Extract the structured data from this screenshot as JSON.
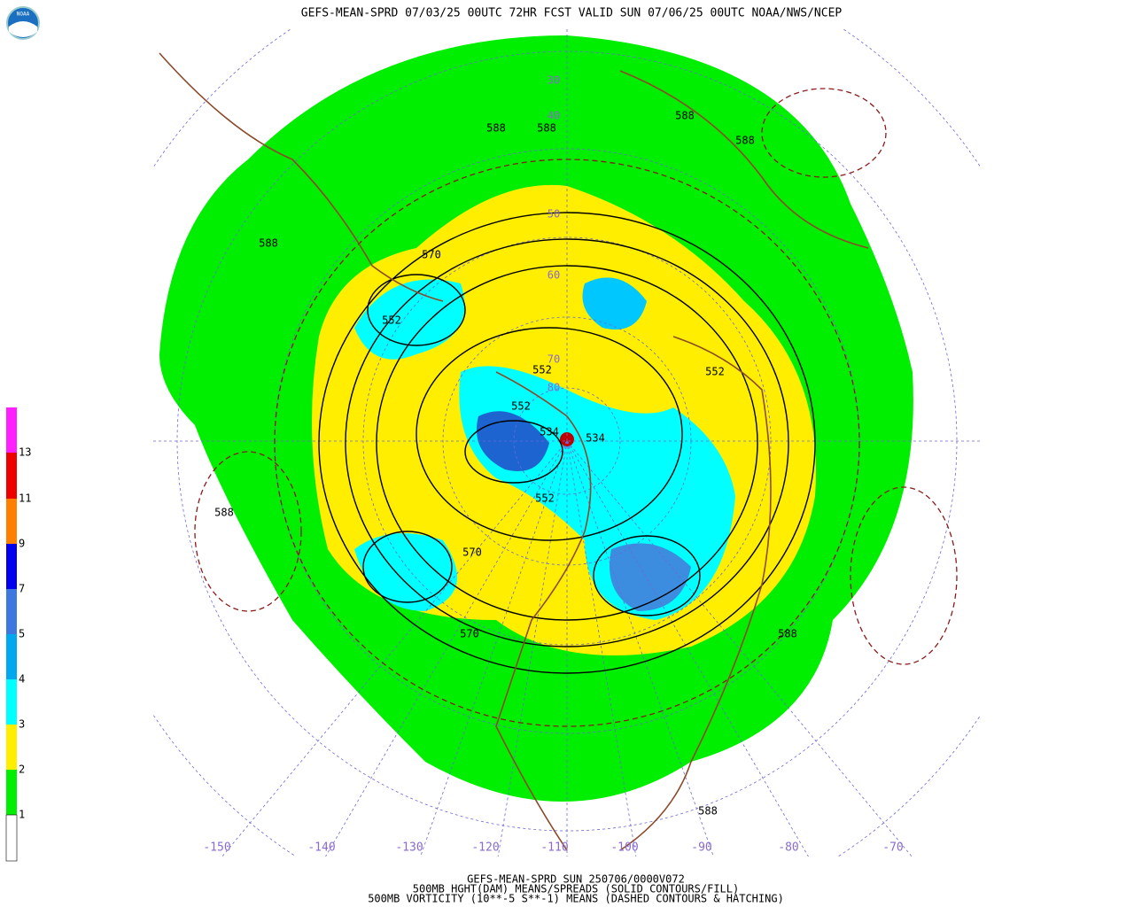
{
  "header": {
    "title": "GEFS-MEAN-SPRD 07/03/25 00UTC 72HR FCST VALID SUN 07/06/25 00UTC NOAA/NWS/NCEP",
    "logo": "NOAA"
  },
  "legend": {
    "labels": [
      "13",
      "11",
      "9",
      "7",
      "5",
      "4",
      "3",
      "2",
      "1"
    ]
  },
  "map": {
    "contour_labels": [
      "588",
      "588",
      "588",
      "588",
      "588",
      "588",
      "588",
      "588",
      "570",
      "570",
      "570",
      "552",
      "552",
      "552",
      "552",
      "552",
      "534",
      "534"
    ],
    "latitude_labels": [
      "30",
      "40",
      "50",
      "60",
      "70",
      "80"
    ],
    "longitude_labels": [
      "-150",
      "-140",
      "-130",
      "-120",
      "-110",
      "-100",
      "-90",
      "-80",
      "-70"
    ]
  },
  "footer": {
    "lines": [
      "GEFS-MEAN-SPRD SUN 250706/0000V072",
      "500MB HGHT(DAM) MEANS/SPREADS (SOLID CONTOURS/FILL)",
      "500MB VORTICITY (10**-5 S**-1) MEANS (DASHED CONTOURS & HATCHING)"
    ]
  }
}
